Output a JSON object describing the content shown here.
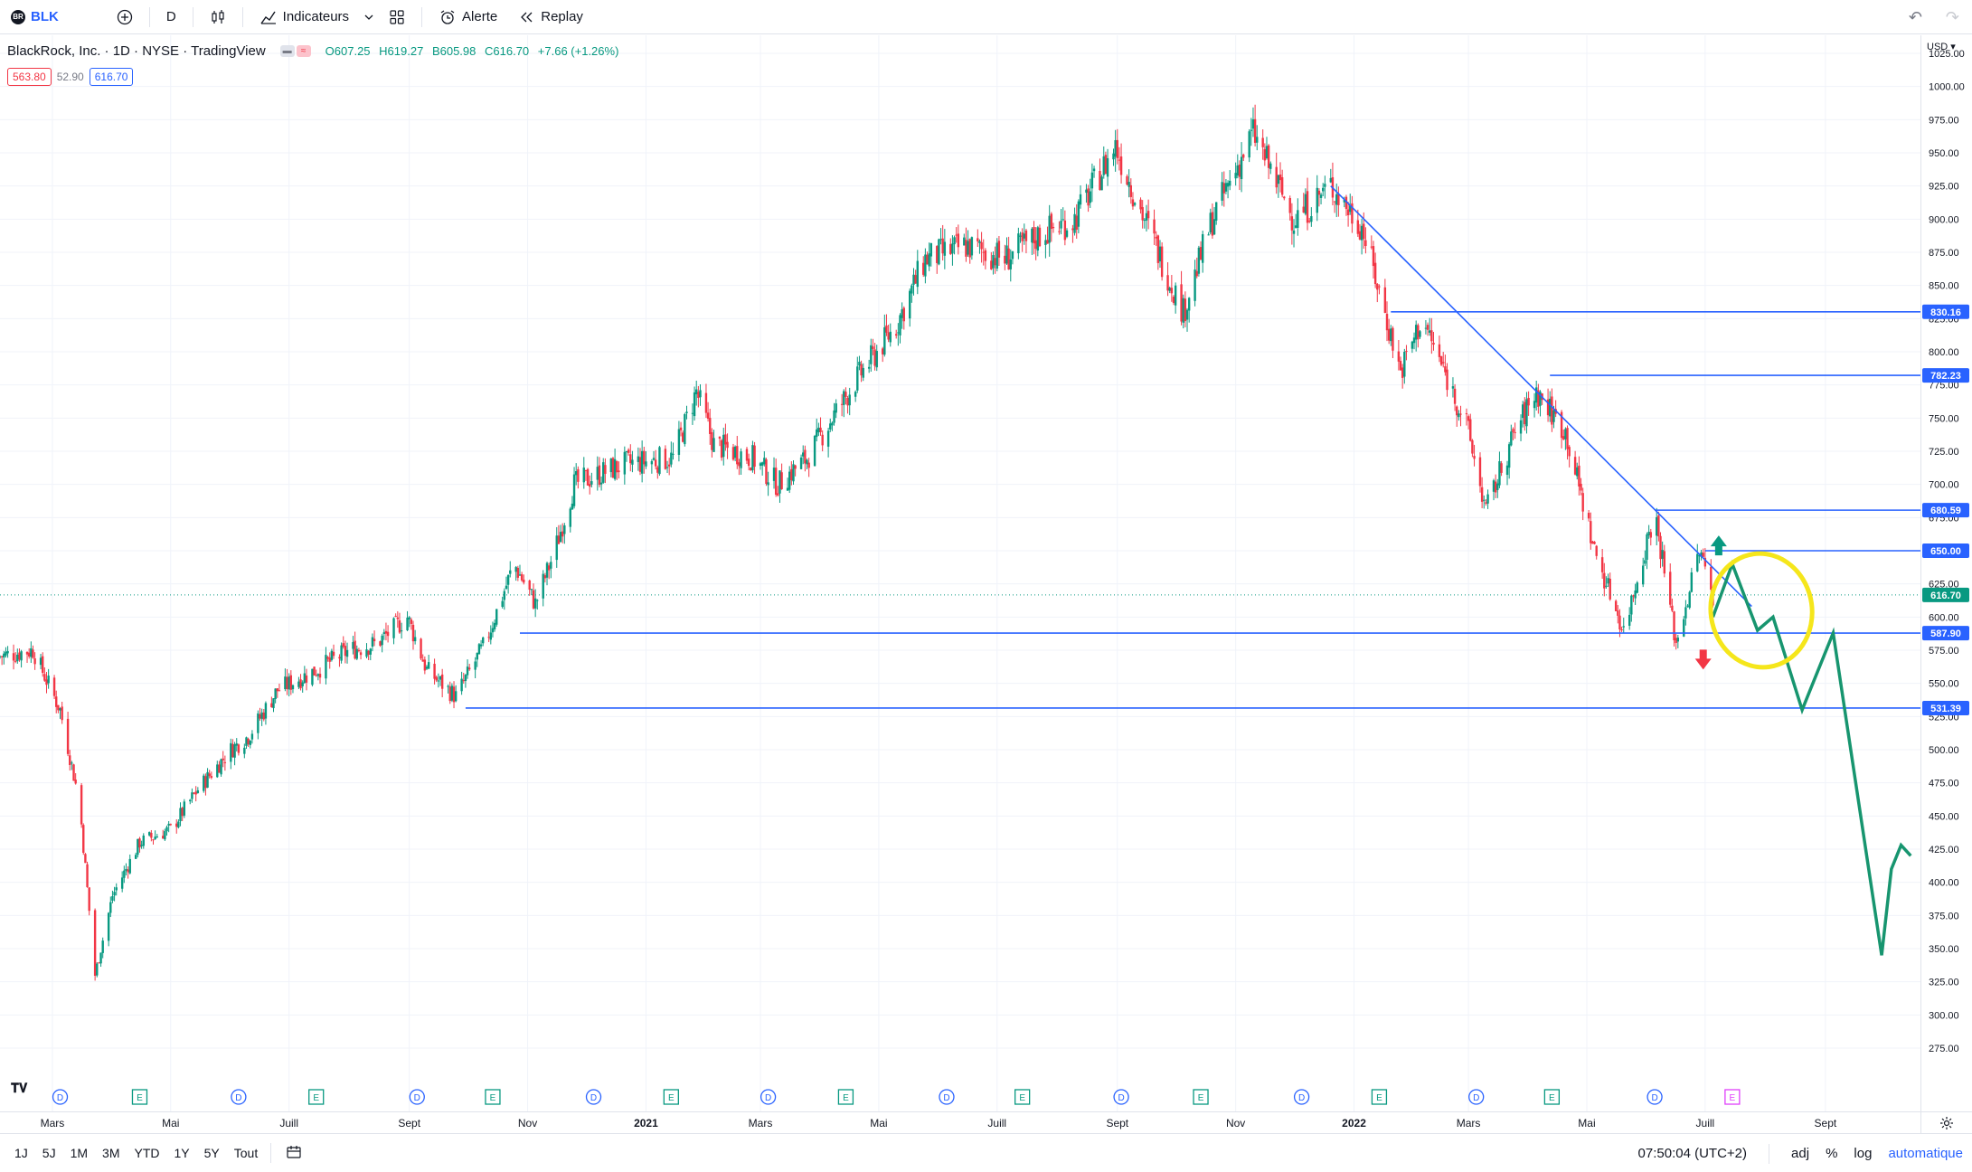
{
  "toolbar": {
    "symbol_badge": "BR",
    "symbol": "BLK",
    "interval": "D",
    "indicators_label": "Indicateurs",
    "alert_label": "Alerte",
    "replay_label": "Replay"
  },
  "legend": {
    "title": "BlackRock, Inc. · 1D · NYSE · TradingView",
    "open": "O607.25",
    "high": "H619.27",
    "low": "B605.98",
    "close": "C616.70",
    "change": "+7.66 (+1.26%)",
    "bid": "563.80",
    "spread": "52.90",
    "ask": "616.70"
  },
  "price_axis": {
    "currency": "USD",
    "ticks": [
      "1025.00",
      "1000.00",
      "975.00",
      "950.00",
      "925.00",
      "900.00",
      "875.00",
      "850.00",
      "825.00",
      "800.00",
      "775.00",
      "750.00",
      "725.00",
      "700.00",
      "675.00",
      "650.00",
      "625.00",
      "600.00",
      "575.00",
      "550.00",
      "525.00",
      "500.00",
      "475.00",
      "450.00",
      "425.00",
      "400.00",
      "375.00",
      "350.00",
      "325.00",
      "300.00",
      "275.00"
    ],
    "tick_values": [
      1025,
      1000,
      975,
      950,
      925,
      900,
      875,
      850,
      825,
      800,
      775,
      750,
      725,
      700,
      675,
      650,
      625,
      600,
      575,
      550,
      525,
      500,
      475,
      450,
      425,
      400,
      375,
      350,
      325,
      300,
      275
    ],
    "badges": [
      {
        "label": "830.16",
        "value": 830.16,
        "color": "#2962ff"
      },
      {
        "label": "782.23",
        "value": 782.23,
        "color": "#2962ff"
      },
      {
        "label": "680.59",
        "value": 680.59,
        "color": "#2962ff"
      },
      {
        "label": "650.00",
        "value": 650.0,
        "color": "#2962ff"
      },
      {
        "label": "616.70",
        "value": 616.7,
        "color": "#089981"
      },
      {
        "label": "587.90",
        "value": 587.9,
        "color": "#2962ff"
      },
      {
        "label": "531.39",
        "value": 531.39,
        "color": "#2962ff"
      }
    ]
  },
  "time_axis": {
    "labels": [
      "Mars",
      "Mai",
      "Juill",
      "Sept",
      "Nov",
      "2021",
      "Mars",
      "Mai",
      "Juill",
      "Sept",
      "Nov",
      "2022",
      "Mars",
      "Mai",
      "Juill",
      "Sept"
    ],
    "bold": [
      false,
      false,
      false,
      false,
      false,
      true,
      false,
      false,
      false,
      false,
      false,
      true,
      false,
      false,
      false,
      false
    ]
  },
  "events": [
    "D",
    "E",
    "D",
    "E",
    "D",
    "E",
    "D",
    "E",
    "D",
    "E",
    "D",
    "E",
    "D",
    "E",
    "D",
    "E",
    "D",
    "E",
    "D",
    "E"
  ],
  "chart_data": {
    "type": "candlestick",
    "symbol": "BLK",
    "interval": "1D",
    "ylim": [
      265,
      1035
    ],
    "x_range": [
      "2020-02",
      "2022-09"
    ],
    "price_path": [
      [
        "2020-02-01",
        570
      ],
      [
        "2020-02-20",
        575
      ],
      [
        "2020-03-05",
        530
      ],
      [
        "2020-03-15",
        460
      ],
      [
        "2020-03-23",
        330
      ],
      [
        "2020-04-01",
        390
      ],
      [
        "2020-04-15",
        430
      ],
      [
        "2020-05-01",
        440
      ],
      [
        "2020-05-15",
        470
      ],
      [
        "2020-06-01",
        500
      ],
      [
        "2020-06-10",
        510
      ],
      [
        "2020-06-25",
        545
      ],
      [
        "2020-07-15",
        560
      ],
      [
        "2020-08-01",
        575
      ],
      [
        "2020-08-15",
        580
      ],
      [
        "2020-08-31",
        600
      ],
      [
        "2020-09-10",
        560
      ],
      [
        "2020-09-25",
        540
      ],
      [
        "2020-10-10",
        580
      ],
      [
        "2020-10-25",
        640
      ],
      [
        "2020-11-05",
        610
      ],
      [
        "2020-11-15",
        650
      ],
      [
        "2020-11-25",
        700
      ],
      [
        "2020-12-20",
        715
      ],
      [
        "2021-01-15",
        720
      ],
      [
        "2021-01-27",
        770
      ],
      [
        "2021-02-05",
        730
      ],
      [
        "2021-02-25",
        720
      ],
      [
        "2021-03-10",
        700
      ],
      [
        "2021-03-25",
        720
      ],
      [
        "2021-04-20",
        780
      ],
      [
        "2021-05-10",
        820
      ],
      [
        "2021-05-25",
        870
      ],
      [
        "2021-06-15",
        880
      ],
      [
        "2021-07-05",
        870
      ],
      [
        "2021-07-25",
        890
      ],
      [
        "2021-08-10",
        900
      ],
      [
        "2021-08-31",
        955
      ],
      [
        "2021-09-15",
        900
      ],
      [
        "2021-10-05",
        830
      ],
      [
        "2021-10-20",
        900
      ],
      [
        "2021-11-10",
        965
      ],
      [
        "2021-12-01",
        900
      ],
      [
        "2021-12-20",
        925
      ],
      [
        "2022-01-05",
        895
      ],
      [
        "2022-01-25",
        785
      ],
      [
        "2022-02-05",
        825
      ],
      [
        "2022-02-28",
        745
      ],
      [
        "2022-03-10",
        680
      ],
      [
        "2022-03-25",
        740
      ],
      [
        "2022-04-05",
        770
      ],
      [
        "2022-04-20",
        740
      ],
      [
        "2022-05-05",
        650
      ],
      [
        "2022-05-20",
        590
      ],
      [
        "2022-06-05",
        680
      ],
      [
        "2022-06-16",
        580
      ],
      [
        "2022-06-28",
        650
      ],
      [
        "2022-07-05",
        616.7
      ]
    ],
    "horizontal_levels": [
      830.16,
      782.23,
      680.59,
      650.0,
      587.9,
      531.39
    ],
    "trendline": {
      "from": [
        "2021-12-20",
        925
      ],
      "to": [
        "2022-07-25",
        608
      ]
    },
    "support_lines": [
      {
        "from": "2020-10-28",
        "value": 587.9
      },
      {
        "from": "2020-09-30",
        "value": 531.39
      }
    ],
    "resistance_lines": [
      {
        "from": "2022-01-20",
        "value": 830.16
      },
      {
        "from": "2022-04-12",
        "value": 782.23
      },
      {
        "from": "2022-06-05",
        "value": 680.59
      },
      {
        "from": "2022-07-01",
        "value": 650.0
      }
    ],
    "projection_path": [
      [
        "2022-07-05",
        600
      ],
      [
        "2022-07-15",
        640
      ],
      [
        "2022-07-28",
        590
      ],
      [
        "2022-08-05",
        600
      ],
      [
        "2022-08-20",
        530
      ],
      [
        "2022-09-05",
        588
      ],
      [
        "2022-09-30",
        345
      ],
      [
        "2022-10-05",
        410
      ],
      [
        "2022-10-10",
        428
      ],
      [
        "2022-10-15",
        420
      ]
    ],
    "last_price": 616.7,
    "colors": {
      "up": "#089981",
      "down": "#f23645",
      "lines": "#2962ff",
      "projection": "#17956f",
      "highlight": "#f5e61b"
    }
  },
  "bottom_bar": {
    "ranges": [
      "1J",
      "5J",
      "1M",
      "3M",
      "YTD",
      "1Y",
      "5Y",
      "Tout"
    ],
    "time": "07:50:04 (UTC+2)",
    "adj": "adj",
    "percent": "%",
    "log": "log",
    "auto": "automatique"
  }
}
